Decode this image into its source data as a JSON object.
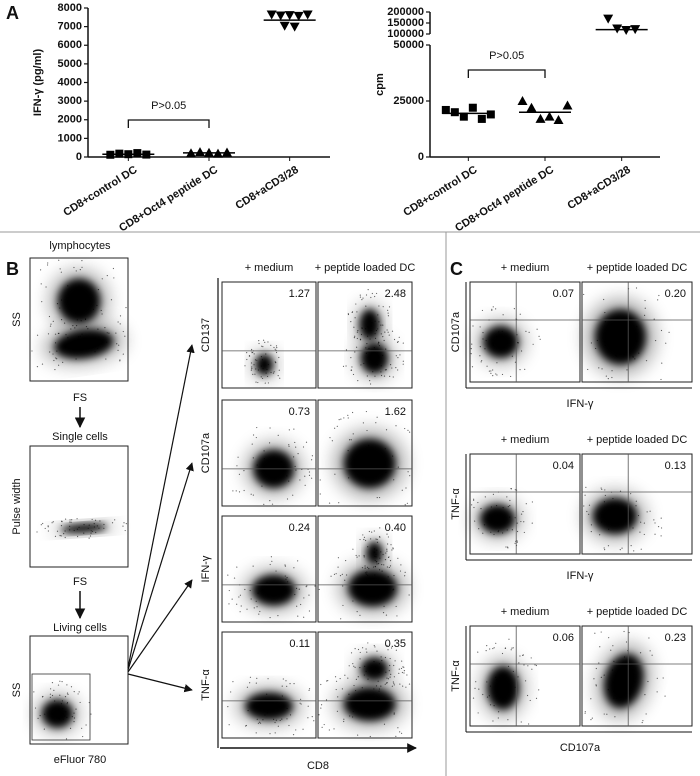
{
  "panel_a": {
    "label": "A"
  },
  "chart_data": [
    {
      "type": "scatter",
      "categories": [
        "CD8+control DC",
        "CD8+Oct4 peptide DC",
        "CD8+aCD3/28"
      ],
      "y_label": "IFN-γ (pg/ml)",
      "annotation": "P>0.05",
      "values": [
        [
          120,
          180,
          150,
          210,
          130
        ],
        [
          200,
          260,
          230,
          180,
          240
        ],
        [
          7650,
          7600,
          7620,
          7580,
          7650,
          7050,
          7000
        ]
      ],
      "means": [
        150,
        220,
        7350
      ],
      "markers": [
        "square",
        "triangle",
        "triangle-down"
      ],
      "color": "#000000",
      "ylim": [
        0,
        8000
      ],
      "yticks": [
        0,
        1000,
        2000,
        3000,
        4000,
        5000,
        6000,
        7000,
        8000
      ]
    },
    {
      "type": "scatter",
      "categories": [
        "CD8+control DC",
        "CD8+Oct4 peptide DC",
        "CD8+aCD3/28"
      ],
      "y_label": "cpm",
      "annotation": "P>0.05",
      "values": [
        [
          21000,
          20000,
          18000,
          22000,
          17000,
          19000
        ],
        [
          25000,
          22000,
          17000,
          18000,
          16500,
          23000
        ],
        [
          170000,
          125000,
          118000,
          122000
        ]
      ],
      "means": [
        19500,
        20000,
        120000
      ],
      "markers": [
        "square",
        "triangle",
        "triangle-down"
      ],
      "color": "#000000",
      "ylim": [
        0,
        50000
      ],
      "yticks": [
        0,
        25000,
        50000
      ],
      "ylim_upper": [
        100000,
        200000
      ],
      "yticks_upper": [
        100000,
        150000,
        200000
      ]
    }
  ],
  "panel_b": {
    "label": "B",
    "gating": [
      {
        "title": "lymphocytes",
        "y_label": "SS",
        "x_label": "FS"
      },
      {
        "title": "Single cells",
        "y_label": "Pulse width",
        "x_label": "FS"
      },
      {
        "title": "Living cells",
        "y_label": "SS",
        "x_label": "eFluor 780"
      }
    ],
    "columns": [
      "+ medium",
      "+ peptide loaded DC"
    ],
    "rows": [
      {
        "marker": "CD137",
        "values": [
          "1.27",
          "2.48"
        ]
      },
      {
        "marker": "CD107a",
        "values": [
          "0.73",
          "1.62"
        ]
      },
      {
        "marker": "IFN-γ",
        "values": [
          "0.24",
          "0.40"
        ]
      },
      {
        "marker": "TNF-α",
        "values": [
          "0.11",
          "0.35"
        ]
      }
    ],
    "x_label": "CD8"
  },
  "panel_c": {
    "label": "C",
    "blocks": [
      {
        "columns": [
          "+ medium",
          "+ peptide loaded DC"
        ],
        "y_label": "CD107a",
        "x_label": "IFN-γ",
        "values": [
          "0.07",
          "0.20"
        ]
      },
      {
        "columns": [
          "+ medium",
          "+ peptide loaded DC"
        ],
        "y_label": "TNF-α",
        "x_label": "IFN-γ",
        "values": [
          "0.04",
          "0.13"
        ]
      },
      {
        "columns": [
          "+ medium",
          "+ peptide loaded DC"
        ],
        "y_label": "TNF-α",
        "x_label": "CD107a",
        "values": [
          "0.06",
          "0.23"
        ]
      }
    ]
  }
}
